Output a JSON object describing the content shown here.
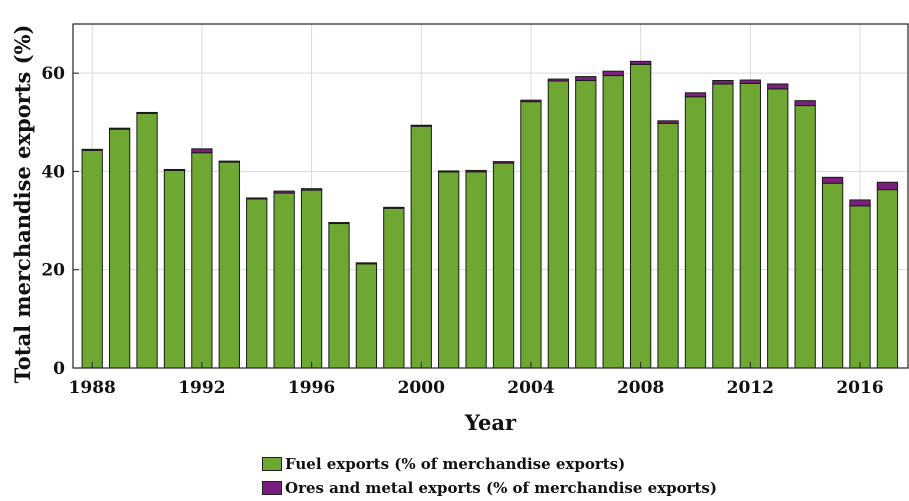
{
  "chart_data": {
    "type": "bar",
    "stacked": true,
    "xlabel": "Year",
    "ylabel": "Total merchandise exports (%)",
    "ylim": [
      0,
      70
    ],
    "yticks": [
      0,
      20,
      40,
      60
    ],
    "xticks": [
      1988,
      1992,
      1996,
      2000,
      2004,
      2008,
      2012,
      2016
    ],
    "grid": true,
    "legend_position": "bottom",
    "categories": [
      1988,
      1989,
      1990,
      1991,
      1992,
      1993,
      1994,
      1995,
      1996,
      1997,
      1998,
      1999,
      2000,
      2001,
      2002,
      2003,
      2004,
      2005,
      2006,
      2007,
      2008,
      2009,
      2010,
      2011,
      2012,
      2013,
      2014,
      2015,
      2016,
      2017
    ],
    "series": [
      {
        "name": "Fuel exports (% of merchandise exports)",
        "color": "#6ea832",
        "values": [
          44.3,
          48.6,
          51.8,
          40.2,
          43.8,
          41.9,
          34.4,
          35.6,
          36.2,
          29.4,
          21.2,
          32.5,
          49.2,
          39.9,
          39.9,
          41.7,
          54.2,
          58.4,
          58.5,
          59.5,
          61.8,
          49.8,
          55.2,
          57.8,
          57.9,
          56.8,
          53.4,
          37.6,
          33.0,
          36.3
        ]
      },
      {
        "name": "Ores and metal exports (% of merchandise exports)",
        "color": "#7b1f7e",
        "values": [
          0.2,
          0.2,
          0.2,
          0.2,
          0.8,
          0.2,
          0.2,
          0.4,
          0.3,
          0.2,
          0.2,
          0.2,
          0.2,
          0.2,
          0.3,
          0.3,
          0.3,
          0.4,
          0.8,
          0.9,
          0.6,
          0.5,
          0.8,
          0.7,
          0.7,
          1.0,
          1.0,
          1.2,
          1.2,
          1.5
        ]
      }
    ]
  }
}
